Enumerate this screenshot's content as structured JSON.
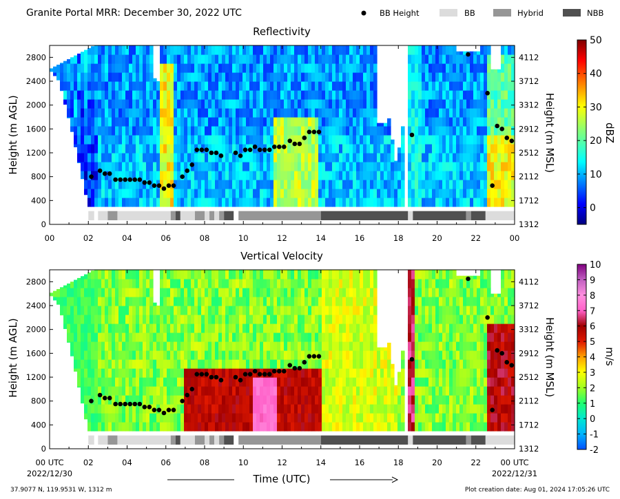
{
  "header": {
    "title": "Granite Portal MRR:  December 30, 2022 UTC",
    "legend": [
      {
        "key": "bb_height",
        "label": "BB Height",
        "marker": "dot",
        "color": "#000000"
      },
      {
        "key": "bb",
        "label": "BB",
        "color": "#dcdcdc"
      },
      {
        "key": "hybrid",
        "label": "Hybrid",
        "color": "#969696"
      },
      {
        "key": "nbb",
        "label": "NBB",
        "color": "#505050"
      }
    ]
  },
  "footer": {
    "location": "37.9077 N, 119.9531 W, 1312 m",
    "creation": "Plot creation date: Aug 01, 2024 17:05:26 UTC",
    "xlabel": "Time (UTC)",
    "start_date": "2022/12/30",
    "end_date": "2022/12/31"
  },
  "chart_data": [
    {
      "type": "heatmap",
      "title": "Reflectivity",
      "ylabel": "Height (m AGL)",
      "y2label": "Height (m MSL)",
      "colorbar_label": "dBZ",
      "colorbar_range": [
        -5,
        50
      ],
      "colorbar_ticks": [
        "0",
        "10",
        "20",
        "30",
        "40",
        "50"
      ],
      "colorbar_tick_values": [
        0,
        10,
        20,
        30,
        40,
        50
      ],
      "colormap": "jet",
      "x_ticks": [
        "00",
        "02",
        "04",
        "06",
        "08",
        "10",
        "12",
        "14",
        "16",
        "18",
        "20",
        "22",
        "00"
      ],
      "y_ticks": [
        0,
        400,
        800,
        1200,
        1600,
        2000,
        2400,
        2800
      ],
      "y2_ticks": [
        1312,
        1712,
        2112,
        2512,
        2912,
        3312,
        3712,
        4112
      ],
      "xlim": [
        0,
        24
      ],
      "ylim": [
        0,
        3000
      ]
    },
    {
      "type": "heatmap",
      "title": "Vertical Velocity",
      "ylabel": "Height (m AGL)",
      "y2label": "Height (m MSL)",
      "colorbar_label": "m/s",
      "colorbar_range": [
        -2,
        10
      ],
      "colorbar_ticks": [
        "-2",
        "-1",
        "0",
        "1",
        "2",
        "3",
        "4",
        "5",
        "6",
        "7",
        "8",
        "9",
        "10"
      ],
      "colorbar_tick_values": [
        -2,
        -1,
        0,
        1,
        2,
        3,
        4,
        5,
        6,
        7,
        8,
        9,
        10
      ],
      "colormap": "velocity",
      "x_ticks": [
        "00 UTC",
        "02",
        "04",
        "06",
        "08",
        "10",
        "12",
        "14",
        "16",
        "18",
        "20",
        "22",
        "00 UTC"
      ],
      "y_ticks": [
        0,
        400,
        800,
        1200,
        1600,
        2000,
        2400,
        2800
      ],
      "y2_ticks": [
        1312,
        1712,
        2112,
        2512,
        2912,
        3312,
        3712,
        4112
      ],
      "xlim": [
        0,
        24
      ],
      "ylim": [
        0,
        3000
      ]
    }
  ],
  "bb_height_points": [
    [
      2.15,
      800
    ],
    [
      2.6,
      900
    ],
    [
      2.85,
      850
    ],
    [
      3.1,
      850
    ],
    [
      3.4,
      750
    ],
    [
      3.65,
      750
    ],
    [
      3.9,
      750
    ],
    [
      4.15,
      750
    ],
    [
      4.4,
      750
    ],
    [
      4.65,
      750
    ],
    [
      4.9,
      700
    ],
    [
      5.15,
      700
    ],
    [
      5.4,
      650
    ],
    [
      5.65,
      650
    ],
    [
      5.9,
      600
    ],
    [
      6.15,
      650
    ],
    [
      6.4,
      650
    ],
    [
      6.85,
      800
    ],
    [
      7.1,
      900
    ],
    [
      7.35,
      1000
    ],
    [
      7.6,
      1250
    ],
    [
      7.85,
      1250
    ],
    [
      8.1,
      1250
    ],
    [
      8.35,
      1200
    ],
    [
      8.6,
      1200
    ],
    [
      8.85,
      1150
    ],
    [
      9.6,
      1200
    ],
    [
      9.85,
      1150
    ],
    [
      10.1,
      1250
    ],
    [
      10.35,
      1250
    ],
    [
      10.6,
      1300
    ],
    [
      10.85,
      1250
    ],
    [
      11.1,
      1250
    ],
    [
      11.35,
      1250
    ],
    [
      11.6,
      1300
    ],
    [
      11.85,
      1300
    ],
    [
      12.1,
      1300
    ],
    [
      12.4,
      1400
    ],
    [
      12.65,
      1350
    ],
    [
      12.9,
      1350
    ],
    [
      13.15,
      1450
    ],
    [
      13.4,
      1550
    ],
    [
      13.65,
      1550
    ],
    [
      13.9,
      1550
    ],
    [
      18.7,
      1500
    ],
    [
      21.6,
      2850
    ],
    [
      22.6,
      2200
    ],
    [
      22.85,
      650
    ],
    [
      23.1,
      1650
    ],
    [
      23.35,
      1600
    ],
    [
      23.6,
      1450
    ],
    [
      23.85,
      1400
    ]
  ],
  "bb_type_segments": [
    {
      "start": 2.0,
      "end": 2.3,
      "type": "bb"
    },
    {
      "start": 2.5,
      "end": 3.0,
      "type": "bb"
    },
    {
      "start": 3.0,
      "end": 3.5,
      "type": "hybrid"
    },
    {
      "start": 3.5,
      "end": 6.25,
      "type": "bb"
    },
    {
      "start": 6.25,
      "end": 6.5,
      "type": "hybrid"
    },
    {
      "start": 6.5,
      "end": 6.75,
      "type": "nbb"
    },
    {
      "start": 6.75,
      "end": 7.5,
      "type": "bb"
    },
    {
      "start": 7.5,
      "end": 8.0,
      "type": "hybrid"
    },
    {
      "start": 8.0,
      "end": 8.25,
      "type": "bb"
    },
    {
      "start": 8.25,
      "end": 8.5,
      "type": "hybrid"
    },
    {
      "start": 8.5,
      "end": 8.75,
      "type": "bb"
    },
    {
      "start": 8.75,
      "end": 9.0,
      "type": "hybrid"
    },
    {
      "start": 9.0,
      "end": 9.5,
      "type": "nbb"
    },
    {
      "start": 9.75,
      "end": 14.0,
      "type": "hybrid"
    },
    {
      "start": 14.0,
      "end": 18.5,
      "type": "nbb"
    },
    {
      "start": 18.5,
      "end": 18.75,
      "type": "bb"
    },
    {
      "start": 18.75,
      "end": 21.5,
      "type": "nbb"
    },
    {
      "start": 21.5,
      "end": 21.75,
      "type": "hybrid"
    },
    {
      "start": 21.75,
      "end": 22.5,
      "type": "nbb"
    },
    {
      "start": 22.5,
      "end": 24.0,
      "type": "bb"
    }
  ]
}
